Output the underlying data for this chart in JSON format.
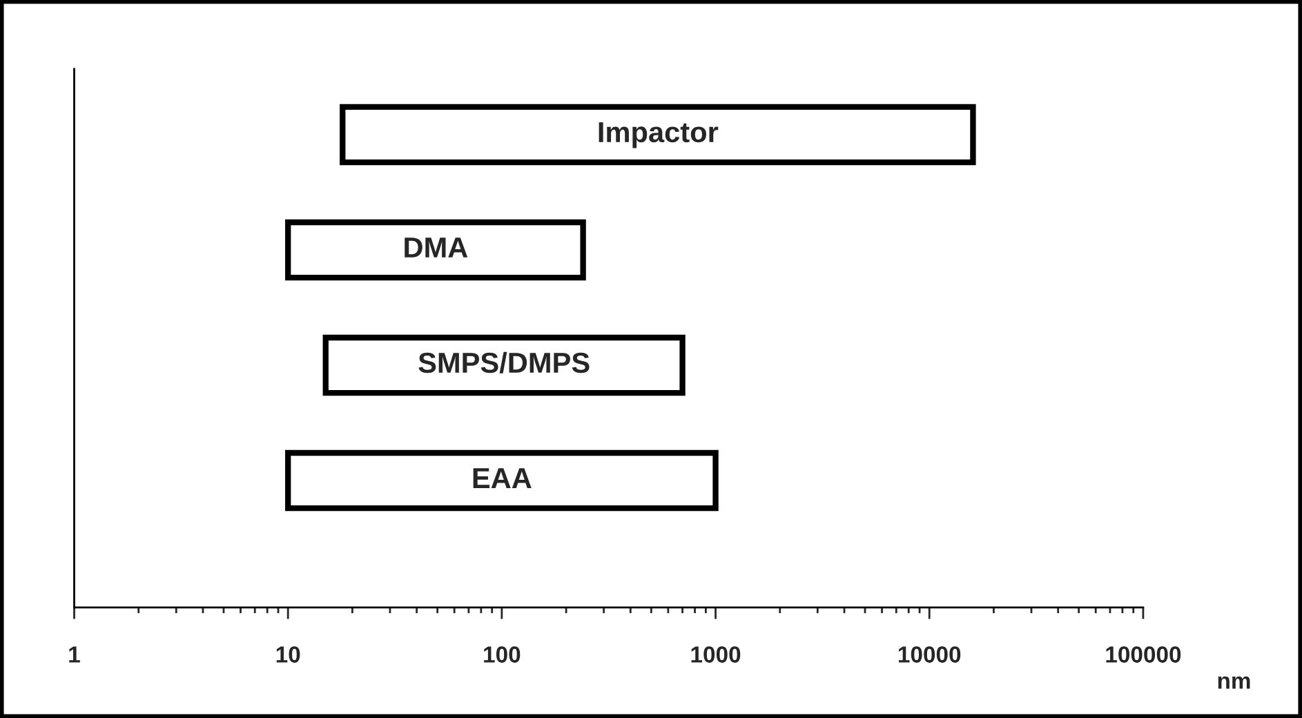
{
  "chart_data": {
    "type": "bar",
    "orientation": "horizontal",
    "categories": [
      "Impactor",
      "DMA",
      "SMPS/DMPS",
      "EAA"
    ],
    "base": [
      18,
      10,
      15,
      10
    ],
    "values": [
      15982,
      230,
      685,
      990
    ],
    "color": "#ffffff",
    "xlabel": "nm",
    "log": "x",
    "xlim": [
      1,
      100000
    ],
    "xticks": [
      1,
      10,
      100,
      1000,
      10000,
      100000
    ],
    "tick_labels": "x",
    "grid": false
  }
}
